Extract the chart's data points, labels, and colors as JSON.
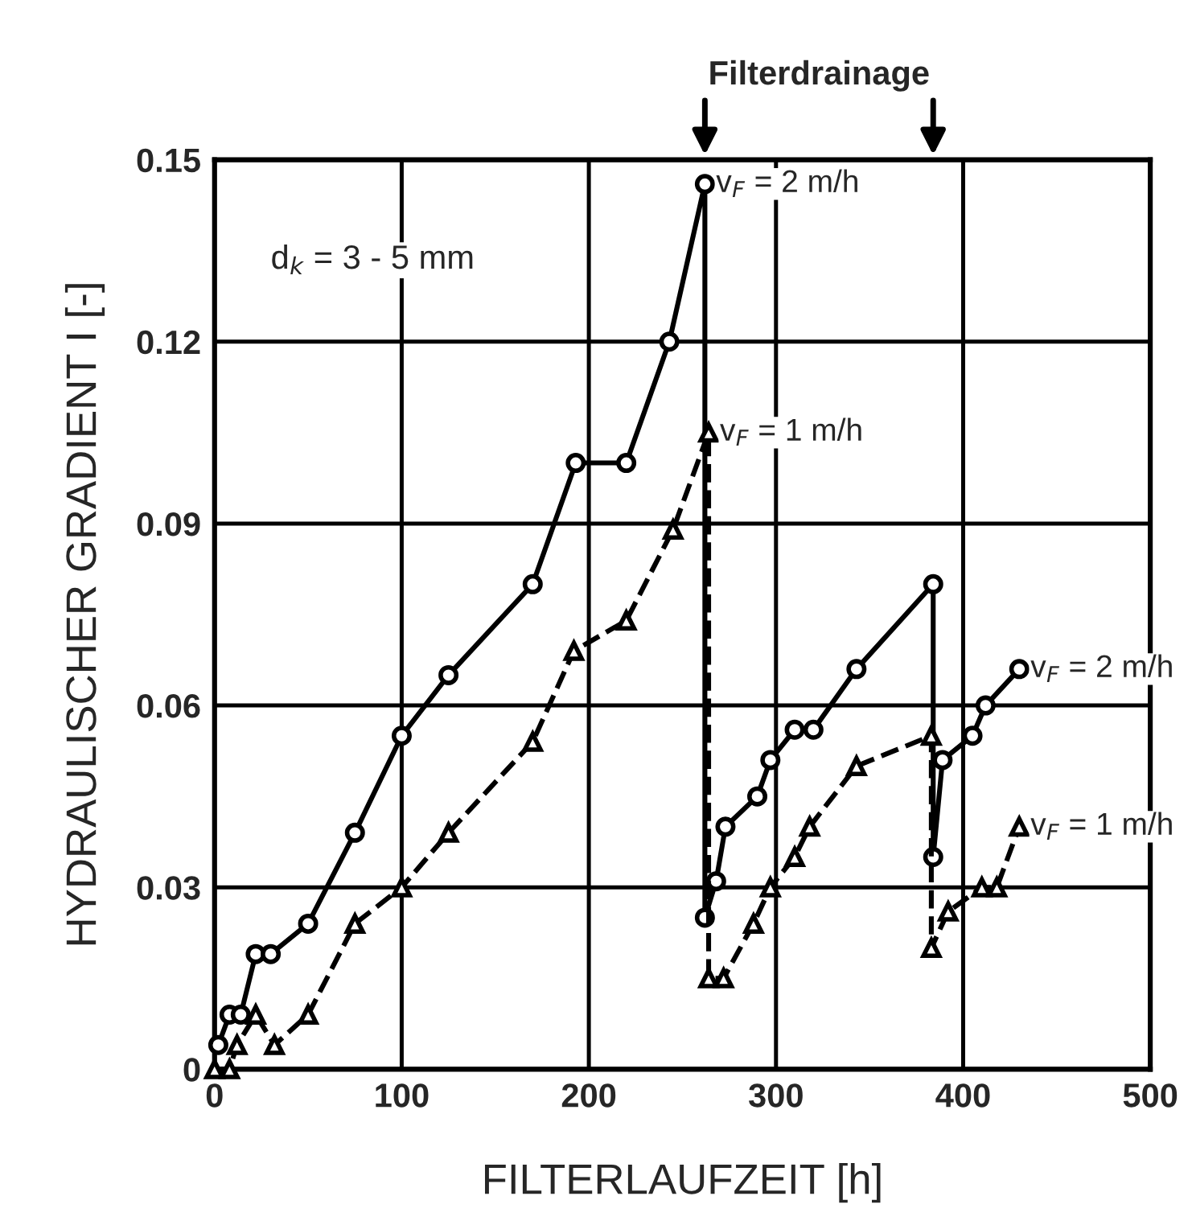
{
  "chart_data": {
    "type": "line",
    "xlabel": "FILTERLAUFZEIT [h]",
    "ylabel": "HYDRAULISCHER GRADIENT I [-]",
    "xlim": [
      0,
      500
    ],
    "xticks": [
      0,
      100,
      200,
      300,
      400,
      500
    ],
    "ylim": [
      0,
      0.15
    ],
    "yticks": [
      0,
      0.03,
      0.06,
      0.09,
      0.12,
      0.15
    ],
    "grid": true,
    "legend": false,
    "series": [
      {
        "color": "#000000",
        "marker": "circle",
        "line_style": "solid",
        "x": [
          2,
          8,
          14,
          22,
          30,
          50,
          75,
          100,
          125,
          170,
          193,
          220,
          243,
          262,
          262,
          268,
          273,
          290,
          297,
          310,
          320,
          343,
          384,
          384,
          389,
          405,
          412,
          430
        ],
        "values": [
          0.004,
          0.009,
          0.009,
          0.019,
          0.019,
          0.024,
          0.039,
          0.055,
          0.065,
          0.08,
          0.1,
          0.1,
          0.12,
          0.146,
          0.025,
          0.031,
          0.04,
          0.045,
          0.051,
          0.056,
          0.056,
          0.066,
          0.08,
          0.035,
          0.051,
          0.055,
          0.06,
          0.066
        ]
      },
      {
        "color": "#000000",
        "marker": "triangle",
        "line_style": "dashed",
        "x": [
          0,
          8,
          12,
          22,
          32,
          50,
          75,
          100,
          125,
          170,
          192,
          220,
          245,
          264,
          264,
          272,
          288,
          297,
          310,
          318,
          343,
          383,
          383,
          392,
          410,
          418,
          430
        ],
        "values": [
          0,
          0,
          0.004,
          0.009,
          0.004,
          0.009,
          0.024,
          0.03,
          0.039,
          0.054,
          0.069,
          0.074,
          0.089,
          0.105,
          0.015,
          0.015,
          0.024,
          0.03,
          0.035,
          0.04,
          0.05,
          0.055,
          0.02,
          0.026,
          0.03,
          0.03,
          0.04
        ]
      }
    ],
    "annotations": [
      "Filterdrainage",
      "d$_{k}$ = 3 - 5 mm",
      {
        "text": "v$_{F}$ = 2 m/h",
        "x": 262,
        "y": 0.146
      },
      {
        "text": "v$_{F}$ = 1 m/h",
        "x": 264,
        "y": 0.105
      },
      {
        "text": "v$_{F}$ = 2 m/h",
        "x": 430,
        "y": 0.066
      },
      {
        "text": "v$_{F}$ = 1 m/h",
        "x": 430,
        "y": 0.04
      }
    ]
  }
}
